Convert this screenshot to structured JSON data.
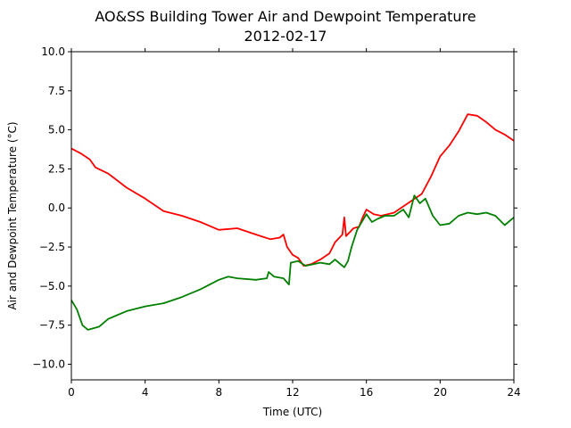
{
  "chart_data": {
    "type": "line",
    "title": "AO&SS Building Tower Air and Dewpoint Temperature",
    "subtitle": "2012-02-17",
    "xlabel": "Time (UTC)",
    "ylabel": "Air and Dewpoint Temperature (°C)",
    "xlim": [
      0,
      24
    ],
    "ylim": [
      -11,
      10
    ],
    "xticks": [
      0,
      4,
      8,
      12,
      16,
      20,
      24
    ],
    "yticks": [
      -10.0,
      -7.5,
      -5.0,
      -2.5,
      0.0,
      2.5,
      5.0,
      7.5,
      10.0
    ],
    "ytick_labels": [
      "−10.0",
      "−7.5",
      "−5.0",
      "−2.5",
      "0.0",
      "2.5",
      "5.0",
      "7.5",
      "10.0"
    ],
    "grid": false,
    "series": [
      {
        "color": "#ff0000",
        "points": [
          [
            0,
            3.8
          ],
          [
            0.5,
            3.5
          ],
          [
            1.0,
            3.1
          ],
          [
            1.3,
            2.6
          ],
          [
            2.0,
            2.2
          ],
          [
            3.0,
            1.3
          ],
          [
            4.0,
            0.6
          ],
          [
            5.0,
            -0.2
          ],
          [
            6.0,
            -0.5
          ],
          [
            7.0,
            -0.9
          ],
          [
            8.0,
            -1.4
          ],
          [
            9.0,
            -1.3
          ],
          [
            10.0,
            -1.7
          ],
          [
            10.8,
            -2.0
          ],
          [
            11.3,
            -1.9
          ],
          [
            11.5,
            -1.7
          ],
          [
            11.7,
            -2.5
          ],
          [
            12.0,
            -3.0
          ],
          [
            12.3,
            -3.2
          ],
          [
            12.6,
            -3.7
          ],
          [
            13.0,
            -3.6
          ],
          [
            13.5,
            -3.3
          ],
          [
            14.0,
            -2.9
          ],
          [
            14.3,
            -2.2
          ],
          [
            14.7,
            -1.7
          ],
          [
            14.8,
            -0.6
          ],
          [
            14.9,
            -1.8
          ],
          [
            15.3,
            -1.3
          ],
          [
            15.6,
            -1.2
          ],
          [
            15.8,
            -0.6
          ],
          [
            16.0,
            -0.1
          ],
          [
            16.4,
            -0.4
          ],
          [
            16.8,
            -0.5
          ],
          [
            17.5,
            -0.3
          ],
          [
            18.0,
            0.1
          ],
          [
            18.5,
            0.5
          ],
          [
            19.0,
            0.9
          ],
          [
            19.5,
            2.0
          ],
          [
            20.0,
            3.3
          ],
          [
            20.5,
            4.0
          ],
          [
            21.0,
            4.9
          ],
          [
            21.5,
            6.0
          ],
          [
            22.0,
            5.9
          ],
          [
            22.5,
            5.5
          ],
          [
            23.0,
            5.0
          ],
          [
            23.5,
            4.7
          ],
          [
            24.0,
            4.3
          ]
        ]
      },
      {
        "color": "#008000",
        "points": [
          [
            0,
            -5.9
          ],
          [
            0.3,
            -6.5
          ],
          [
            0.6,
            -7.5
          ],
          [
            0.9,
            -7.8
          ],
          [
            1.5,
            -7.6
          ],
          [
            2.0,
            -7.1
          ],
          [
            3.0,
            -6.6
          ],
          [
            4.0,
            -6.3
          ],
          [
            5.0,
            -6.1
          ],
          [
            6.0,
            -5.7
          ],
          [
            7.0,
            -5.2
          ],
          [
            8.0,
            -4.6
          ],
          [
            8.5,
            -4.4
          ],
          [
            9.0,
            -4.5
          ],
          [
            10.0,
            -4.6
          ],
          [
            10.6,
            -4.5
          ],
          [
            10.7,
            -4.1
          ],
          [
            11.0,
            -4.4
          ],
          [
            11.5,
            -4.5
          ],
          [
            11.8,
            -4.9
          ],
          [
            11.9,
            -3.5
          ],
          [
            12.3,
            -3.4
          ],
          [
            12.7,
            -3.7
          ],
          [
            13.5,
            -3.5
          ],
          [
            14.0,
            -3.6
          ],
          [
            14.3,
            -3.3
          ],
          [
            14.8,
            -3.8
          ],
          [
            15.0,
            -3.4
          ],
          [
            15.2,
            -2.5
          ],
          [
            15.5,
            -1.4
          ],
          [
            15.8,
            -0.8
          ],
          [
            16.0,
            -0.4
          ],
          [
            16.3,
            -0.9
          ],
          [
            16.6,
            -0.7
          ],
          [
            17.0,
            -0.5
          ],
          [
            17.5,
            -0.5
          ],
          [
            18.0,
            -0.1
          ],
          [
            18.3,
            -0.6
          ],
          [
            18.6,
            0.8
          ],
          [
            18.9,
            0.3
          ],
          [
            19.2,
            0.6
          ],
          [
            19.6,
            -0.5
          ],
          [
            20.0,
            -1.1
          ],
          [
            20.5,
            -1.0
          ],
          [
            21.0,
            -0.5
          ],
          [
            21.5,
            -0.3
          ],
          [
            22.0,
            -0.4
          ],
          [
            22.5,
            -0.3
          ],
          [
            23.0,
            -0.5
          ],
          [
            23.5,
            -1.1
          ],
          [
            24.0,
            -0.6
          ]
        ]
      }
    ]
  }
}
